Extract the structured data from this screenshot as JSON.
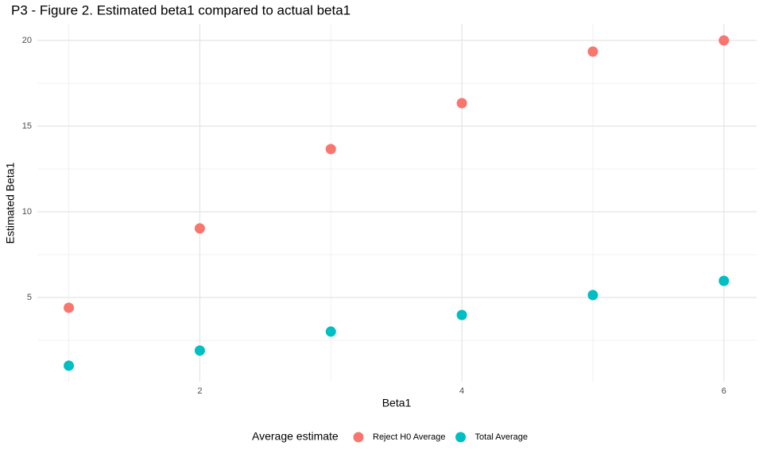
{
  "chart_data": {
    "type": "scatter",
    "title": "P3 - Figure 2. Estimated beta1 compared to actual beta1",
    "x_label": "Beta1",
    "y_label": "Estimated Beta1",
    "legend_title": "Average estimate",
    "legend_position": "bottom",
    "x": [
      1,
      2,
      3,
      4,
      5,
      6
    ],
    "series": [
      {
        "name": "Reject H0 Average",
        "color": "#F8766D",
        "values": [
          4.4,
          9.03,
          13.66,
          16.34,
          19.35,
          20.0
        ]
      },
      {
        "name": "Total Average",
        "color": "#00BFC4",
        "values": [
          1.02,
          1.9,
          3.01,
          3.98,
          5.14,
          5.97
        ]
      }
    ],
    "xlim": [
      0.76,
      6.25
    ],
    "xticks": [
      2,
      4,
      6
    ],
    "xminor": [
      1,
      3,
      5
    ],
    "ylim": [
      0.09,
      20.97
    ],
    "yticks": [
      5,
      10,
      15,
      20
    ],
    "yminor": [
      2.5,
      7.5,
      12.5,
      17.5
    ],
    "grid": true
  }
}
